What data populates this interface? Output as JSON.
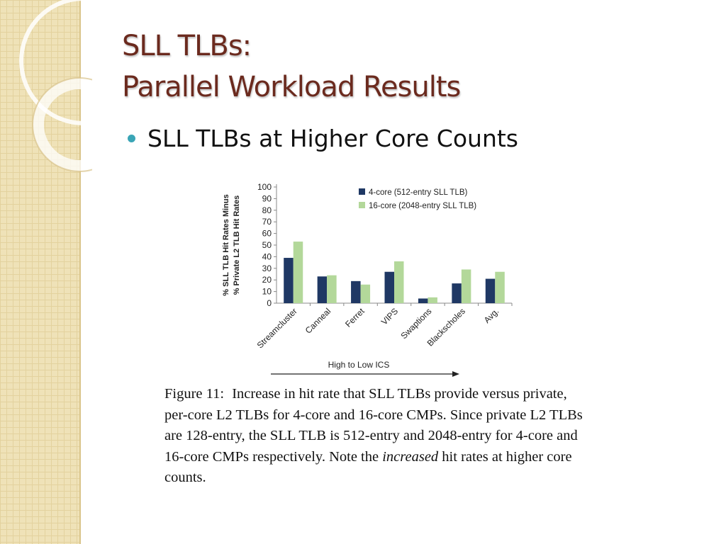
{
  "slide": {
    "title_line1": "SLL TLBs:",
    "title_line2": "Parallel Workload Results",
    "bullet": "SLL TLBs at Higher Core Counts",
    "colors": {
      "title": "#6b2a1e",
      "bullet_dot": "#3aa5b6",
      "side_strip": "#efe2b8"
    }
  },
  "chart_data": {
    "type": "bar",
    "categories": [
      "Streamcluster",
      "Canneal",
      "Ferret",
      "VIPS",
      "Swaptions",
      "Blackscholes",
      "Avg."
    ],
    "series": [
      {
        "name": "4-core (512-entry SLL TLB)",
        "color": "#1f3864",
        "values": [
          39,
          23,
          19,
          27,
          4,
          17,
          21
        ]
      },
      {
        "name": "16-core (2048-entry SLL TLB)",
        "color": "#b3d89a",
        "values": [
          53,
          24,
          16,
          36,
          5,
          29,
          27
        ]
      }
    ],
    "ylabel_line1": "% SLL TLB Hit Rates Minus",
    "ylabel_line2": "% Private L2 TLB Hit Rates",
    "xlabel": "High to Low ICS",
    "ylim": [
      0,
      100
    ],
    "yticks": [
      0,
      10,
      20,
      30,
      40,
      50,
      60,
      70,
      80,
      90,
      100
    ],
    "grid": false,
    "legend_position": "top-right"
  },
  "caption": {
    "label": "Figure 11:",
    "text_part1": "Increase in hit rate that SLL TLBs provide versus private, per-core L2 TLBs for 4-core and 16-core CMPs. Since private L2 TLBs are 128-entry, the SLL TLB is 512-entry and 2048-entry for 4-core and 16-core CMPs respectively. Note the",
    "emphasis": "increased",
    "text_part2": "hit rates at higher core counts."
  }
}
